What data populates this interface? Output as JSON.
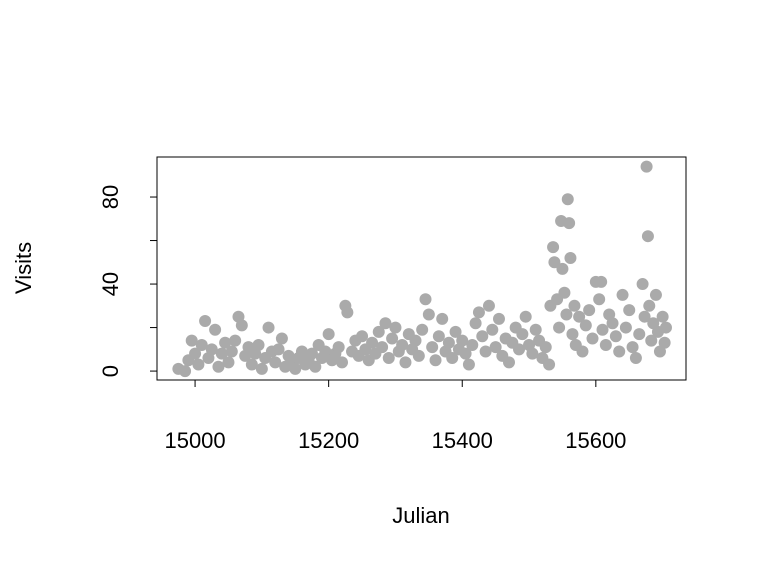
{
  "chart_data": {
    "type": "scatter",
    "x_label": "Julian",
    "y_label": "Visits",
    "color": "#aaaaaa",
    "xlim": [
      14943,
      15735
    ],
    "ylim": [
      -4.1,
      98.4
    ],
    "xticks": [
      15000,
      15200,
      15400,
      15600
    ],
    "yticks": [
      0,
      20,
      40,
      60,
      80
    ],
    "x": [
      14975,
      14985,
      14990,
      14995,
      15000,
      15005,
      15010,
      15015,
      15020,
      15025,
      15030,
      15035,
      15040,
      15045,
      15050,
      15055,
      15060,
      15065,
      15070,
      15075,
      15080,
      15085,
      15090,
      15095,
      15100,
      15105,
      15110,
      15115,
      15120,
      15125,
      15130,
      15135,
      15140,
      15145,
      15150,
      15155,
      15160,
      15165,
      15170,
      15175,
      15180,
      15185,
      15190,
      15195,
      15200,
      15205,
      15210,
      15215,
      15220,
      15225,
      15228,
      15235,
      15240,
      15245,
      15250,
      15255,
      15260,
      15265,
      15270,
      15275,
      15280,
      15285,
      15290,
      15295,
      15300,
      15305,
      15310,
      15315,
      15320,
      15325,
      15330,
      15335,
      15340,
      15345,
      15350,
      15355,
      15360,
      15365,
      15370,
      15375,
      15380,
      15385,
      15390,
      15395,
      15400,
      15405,
      15410,
      15415,
      15420,
      15425,
      15430,
      15435,
      15440,
      15445,
      15450,
      15455,
      15460,
      15465,
      15470,
      15475,
      15480,
      15485,
      15490,
      15495,
      15500,
      15505,
      15510,
      15515,
      15520,
      15525,
      15530,
      15532,
      15536,
      15538,
      15542,
      15545,
      15548,
      15550,
      15553,
      15556,
      15558,
      15560,
      15562,
      15565,
      15568,
      15570,
      15575,
      15580,
      15585,
      15590,
      15595,
      15600,
      15605,
      15608,
      15610,
      15615,
      15620,
      15625,
      15630,
      15635,
      15640,
      15645,
      15650,
      15655,
      15660,
      15665,
      15670,
      15673,
      15676,
      15678,
      15680,
      15683,
      15686,
      15690,
      15693,
      15696,
      15700,
      15703,
      15705
    ],
    "values": [
      1,
      0,
      5,
      14,
      8,
      3,
      12,
      23,
      6,
      10,
      19,
      2,
      8,
      13,
      4,
      9,
      14,
      25,
      21,
      7,
      11,
      3,
      8,
      12,
      1,
      6,
      20,
      9,
      4,
      10,
      15,
      2,
      7,
      5,
      1,
      6,
      9,
      3,
      5,
      8,
      2,
      12,
      6,
      9,
      17,
      5,
      8,
      11,
      4,
      30,
      27,
      9,
      14,
      7,
      16,
      10,
      5,
      13,
      8,
      18,
      11,
      22,
      6,
      15,
      20,
      9,
      12,
      4,
      17,
      10,
      14,
      7,
      19,
      33,
      26,
      11,
      5,
      16,
      24,
      9,
      13,
      6,
      18,
      10,
      14,
      8,
      3,
      12,
      22,
      27,
      16,
      9,
      30,
      19,
      11,
      24,
      7,
      15,
      4,
      13,
      20,
      10,
      17,
      25,
      12,
      8,
      19,
      14,
      6,
      11,
      3,
      30,
      57,
      50,
      33,
      20,
      69,
      47,
      36,
      26,
      79,
      68,
      52,
      17,
      30,
      12,
      25,
      9,
      21,
      28,
      15,
      41,
      33,
      41,
      19,
      12,
      26,
      22,
      16,
      9,
      35,
      20,
      28,
      11,
      6,
      17,
      40,
      25,
      94,
      62,
      30,
      14,
      22,
      35,
      18,
      9,
      25,
      13,
      20
    ]
  }
}
